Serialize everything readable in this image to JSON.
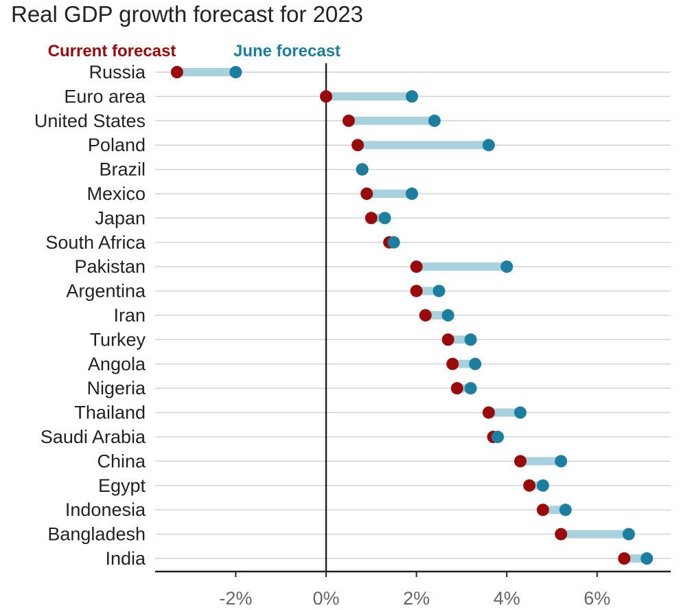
{
  "colors": {
    "current": "#9b0a0a",
    "june": "#1c7fa0",
    "connector": "#a8d0dd",
    "grid": "#d2d2d2",
    "axis": "#222222",
    "tick": "#666666"
  },
  "chart_data": {
    "type": "dumbbell",
    "title": "Real GDP growth forecast for 2023",
    "legend": [
      {
        "key": "current",
        "label": "Current forecast"
      },
      {
        "key": "june",
        "label": "June forecast"
      }
    ],
    "xlim": [
      -3.8,
      7.6
    ],
    "xticks": [
      -2,
      0,
      2,
      4,
      6
    ],
    "xtick_labels": [
      "-2%",
      "0%",
      "2%",
      "4%",
      "6%"
    ],
    "categories": [
      "Russia",
      "Euro area",
      "United States",
      "Poland",
      "Brazil",
      "Mexico",
      "Japan",
      "South Africa",
      "Pakistan",
      "Argentina",
      "Iran",
      "Turkey",
      "Angola",
      "Nigeria",
      "Thailand",
      "Saudi Arabia",
      "China",
      "Egypt",
      "Indonesia",
      "Bangladesh",
      "India"
    ],
    "series": [
      {
        "name": "Current forecast",
        "key": "current",
        "values": [
          -3.3,
          0.0,
          0.5,
          0.7,
          0.8,
          0.9,
          1.0,
          1.4,
          2.0,
          2.0,
          2.2,
          2.7,
          2.8,
          2.9,
          3.6,
          3.7,
          4.3,
          4.5,
          4.8,
          5.2,
          6.6
        ]
      },
      {
        "name": "June forecast",
        "key": "june",
        "values": [
          -2.0,
          1.9,
          2.4,
          3.6,
          0.8,
          1.9,
          1.3,
          1.5,
          4.0,
          2.5,
          2.7,
          3.2,
          3.3,
          3.2,
          4.3,
          3.8,
          5.2,
          4.8,
          5.3,
          6.7,
          7.1
        ]
      }
    ]
  }
}
